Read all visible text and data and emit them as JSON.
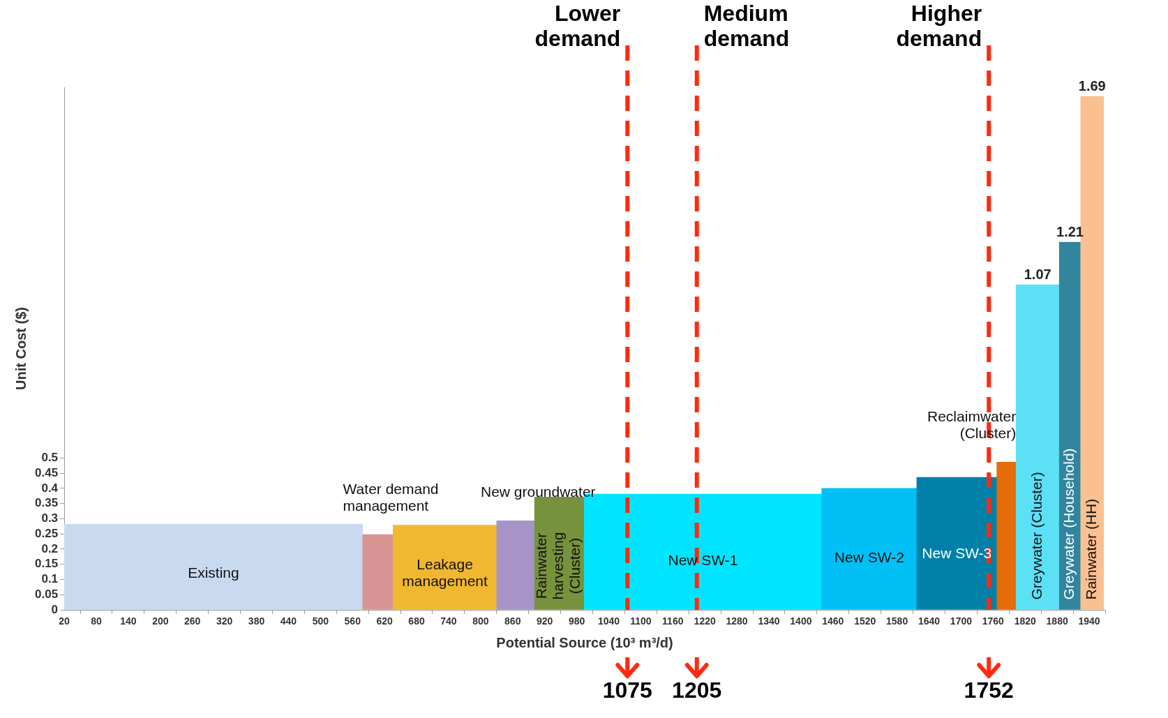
{
  "chart_data": {
    "type": "histogram",
    "xlabel": "Potential Source (10³ m³/d)",
    "ylabel": "Unit Cost ($)",
    "bins": [
      20,
      579,
      636,
      830,
      901,
      994,
      1439,
      1617,
      1767,
      1803,
      1884,
      1924,
      1967
    ],
    "values": [
      0.282,
      0.248,
      0.279,
      0.293,
      0.371,
      0.381,
      0.4,
      0.436,
      0.486,
      1.07,
      1.21,
      1.69
    ],
    "colors": [
      "#c9daf0",
      "#d99594",
      "#f0b730",
      "#a694c8",
      "#77923c",
      "#00e5ff",
      "#00c0f5",
      "#0080a8",
      "#e46c0a",
      "#5ce0f5",
      "#31859c",
      "#fac090"
    ],
    "value_labels": [
      null,
      null,
      null,
      null,
      null,
      null,
      null,
      null,
      null,
      "1.07",
      "1.21",
      "1.69"
    ],
    "xlim": [
      20,
      1970
    ],
    "xticks": [
      20,
      80,
      140,
      200,
      260,
      320,
      380,
      440,
      500,
      560,
      620,
      680,
      740,
      800,
      860,
      920,
      980,
      1040,
      1100,
      1160,
      1220,
      1280,
      1340,
      1400,
      1460,
      1520,
      1580,
      1640,
      1700,
      1760,
      1820,
      1880,
      1940
    ],
    "ylim": [
      0,
      1.72
    ],
    "yticks": [
      0,
      0.05,
      0.1,
      0.15,
      0.2,
      0.25,
      0.3,
      0.35,
      0.4,
      0.45,
      0.5
    ],
    "grid": false,
    "legend": false,
    "annotations": [
      "Existing",
      "Water demand management",
      "Leakage management",
      "New groundwater",
      "Rainwater harvesting(Cluster)",
      "New SW-1",
      "New SW-2",
      "New SW-3",
      "Reclaimwater (Cluster)",
      "Greywater (Cluster)",
      "Greywater (Household)",
      "Rainwater (HH)",
      "1075",
      "1205",
      "1752"
    ],
    "ref_lines": [
      {
        "axis": "x",
        "value": 1075,
        "label": "Lower demand",
        "color": "#ff2a10",
        "line_style": "dashed"
      },
      {
        "axis": "x",
        "value": 1205,
        "label": "Medium demand",
        "color": "#ff2a10",
        "line_style": "dashed"
      },
      {
        "axis": "x",
        "value": 1752,
        "label": "Higher demand",
        "color": "#ff2a10",
        "line_style": "dashed"
      }
    ]
  }
}
